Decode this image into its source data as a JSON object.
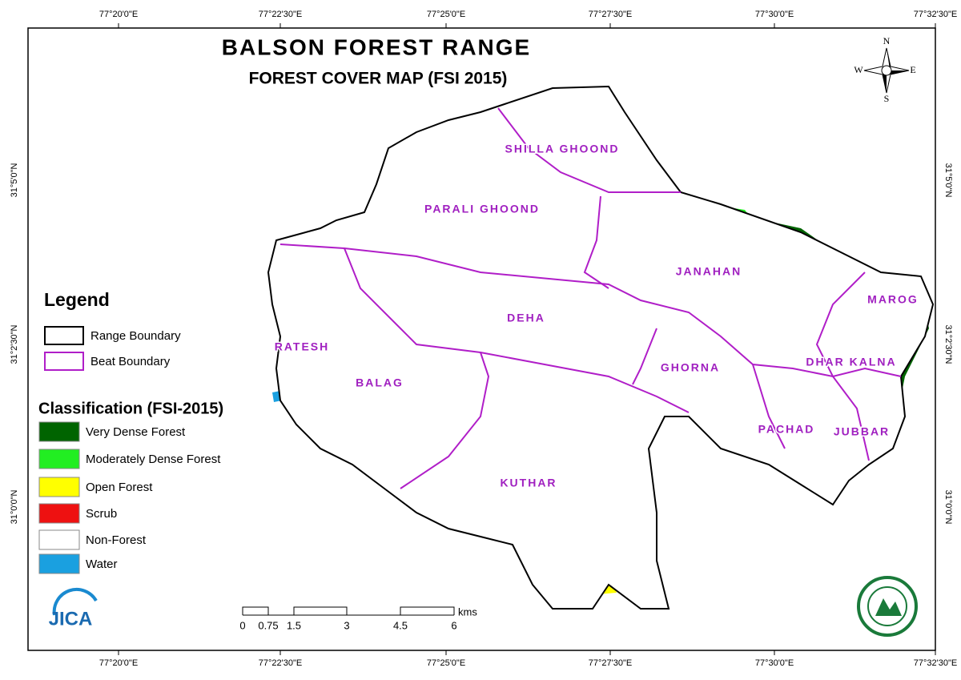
{
  "header": {
    "title": "BALSON FOREST RANGE",
    "subtitle": "FOREST COVER MAP (FSI 2015)"
  },
  "graticule": {
    "longitudes": [
      "77°20'0\"E",
      "77°22'30\"E",
      "77°25'0\"E",
      "77°27'30\"E",
      "77°30'0\"E",
      "77°32'30\"E"
    ],
    "latitudes": [
      "31°5'0\"N",
      "31°2'30\"N",
      "31°0'0\"N"
    ]
  },
  "legend": {
    "title": "Legend",
    "boundaries": [
      {
        "label": "Range Boundary",
        "color": "#000000"
      },
      {
        "label": "Beat Boundary",
        "color": "#b01ec8"
      }
    ]
  },
  "classification": {
    "title": "Classification (FSI-2015)",
    "classes": [
      {
        "label": "Very Dense Forest",
        "color": "#006400"
      },
      {
        "label": "Moderately Dense Forest",
        "color": "#22ee22"
      },
      {
        "label": "Open Forest",
        "color": "#ffff00"
      },
      {
        "label": "Scrub",
        "color": "#ee1111"
      },
      {
        "label": "Non-Forest",
        "color": "#ffffff"
      },
      {
        "label": "Water",
        "color": "#1aa0e0"
      }
    ]
  },
  "beats": [
    "SHILLA GHOOND",
    "PARALI GHOOND",
    "JANAHAN",
    "MAROG",
    "DEHA",
    "RATESH",
    "GHORNA",
    "DHAR KALNA",
    "BALAG",
    "PACHAD",
    "JUBBAR",
    "KUTHAR"
  ],
  "scale_bar": {
    "labels": [
      "0",
      "0.75",
      "1.5",
      "3",
      "4.5",
      "6"
    ],
    "unit": "kms"
  },
  "compass": {
    "n": "N",
    "e": "E",
    "s": "S",
    "w": "W"
  },
  "logos": {
    "jica": "JICA"
  }
}
